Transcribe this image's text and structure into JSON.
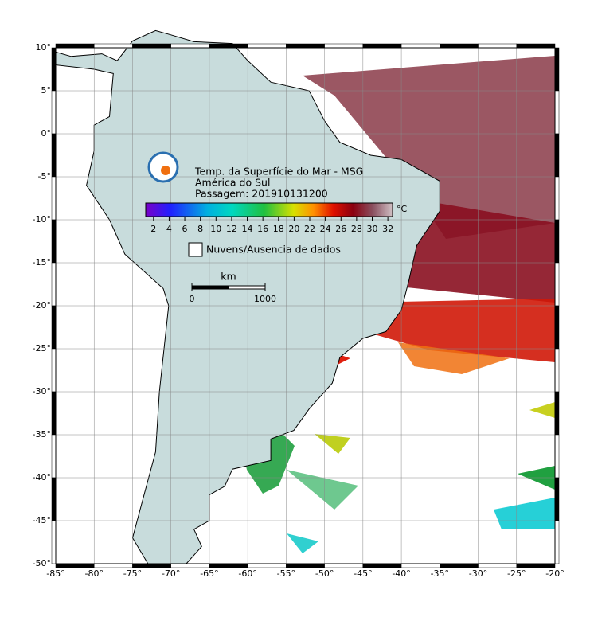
{
  "map": {
    "title": "Temp. da Superfície do Mar - MSG",
    "region": "América do Sul",
    "pass": "Passagem: 201910131200",
    "colorbar": {
      "unit": "°C",
      "range": [
        1,
        32.6
      ],
      "ticks": [
        2,
        4,
        6,
        8,
        10,
        12,
        14,
        16,
        18,
        20,
        22,
        24,
        26,
        28,
        30,
        32
      ]
    },
    "legend": "Nuvens/Ausencia de dados",
    "scale": {
      "unit": "km",
      "ticks": [
        0,
        1000
      ]
    },
    "lon_ticks": [
      {
        "value": -85,
        "label": "-85°"
      },
      {
        "value": -80,
        "label": "-80°"
      },
      {
        "value": -75,
        "label": "-75°"
      },
      {
        "value": -70,
        "label": "-70°"
      },
      {
        "value": -65,
        "label": "-65°"
      },
      {
        "value": -60,
        "label": "-60°"
      },
      {
        "value": -55,
        "label": "-55°"
      },
      {
        "value": -50,
        "label": "-50°"
      },
      {
        "value": -45,
        "label": "-45°"
      },
      {
        "value": -40,
        "label": "-40°"
      },
      {
        "value": -35,
        "label": "-35°"
      },
      {
        "value": -30,
        "label": "-30°"
      },
      {
        "value": -25,
        "label": "-25°"
      },
      {
        "value": -20,
        "label": "-20°"
      }
    ],
    "lat_ticks": [
      {
        "value": 10,
        "label": "10°"
      },
      {
        "value": 5,
        "label": "5°"
      },
      {
        "value": 0,
        "label": "0°"
      },
      {
        "value": -5,
        "label": "-5°"
      },
      {
        "value": -10,
        "label": "-10°"
      },
      {
        "value": -15,
        "label": "-15°"
      },
      {
        "value": -20,
        "label": "-20°"
      },
      {
        "value": -25,
        "label": "-25°"
      },
      {
        "value": -30,
        "label": "-30°"
      },
      {
        "value": -35,
        "label": "-35°"
      },
      {
        "value": -40,
        "label": "-40°"
      },
      {
        "value": -45,
        "label": "-45°"
      },
      {
        "value": -50,
        "label": "-50°"
      }
    ]
  }
}
